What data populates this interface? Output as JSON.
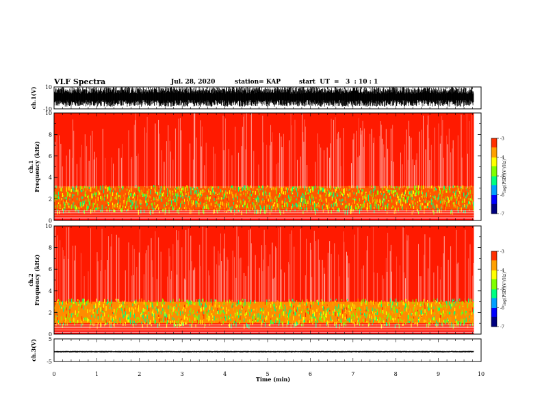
{
  "header": {
    "title": "VLF Spectra",
    "date": "Jul. 28, 2020",
    "station": "station= KAP",
    "start": "start  UT  =   3  : 10 : 1"
  },
  "colors": {
    "spectrogram_background": "#ff0000",
    "waveform": "#000000",
    "colormap": [
      "#00007f",
      "#0000ff",
      "#00a0ff",
      "#00ff80",
      "#80ff00",
      "#ffff00",
      "#ffa000",
      "#ff3000",
      "#ff0000",
      "#ffffff"
    ]
  },
  "chart_data": [
    {
      "type": "line",
      "panel": "ch.1 waveform",
      "ylabel": "ch.1(V)",
      "ylim": [
        -10,
        10
      ],
      "yticks": [
        "10",
        "-10"
      ],
      "xlim": [
        0,
        10
      ],
      "description_values": {
        "typical_min": -8,
        "typical_max": 10
      }
    },
    {
      "type": "heatmap",
      "panel": "ch.1 spectrogram",
      "ylabel": "ch.1\nFrequency  (kHz)",
      "ylim": [
        0,
        10
      ],
      "yticks": [
        "0",
        "2",
        "4",
        "6",
        "8",
        "10"
      ],
      "xlim": [
        0,
        10
      ],
      "colorbar": {
        "label": "log(PSD)(V²/Hz)",
        "range": [
          -7,
          -3
        ],
        "ticks": [
          "-3",
          "-4",
          "-5",
          "-6",
          "-7"
        ]
      },
      "bands": [
        {
          "f_low": 0.3,
          "f_high": 1.0,
          "log_psd": -3.3
        },
        {
          "f_low": 1.0,
          "f_high": 3.2,
          "log_psd": -4.0
        },
        {
          "f_low": 3.2,
          "f_high": 5.0,
          "log_psd": -3.5
        },
        {
          "f_low": 5.0,
          "f_high": 10.0,
          "log_psd": -3.1
        }
      ]
    },
    {
      "type": "heatmap",
      "panel": "ch.2 spectrogram",
      "ylabel": "ch.2\nFrequency  (kHz)",
      "ylim": [
        0,
        10
      ],
      "yticks": [
        "0",
        "2",
        "4",
        "6",
        "8",
        "10"
      ],
      "xlim": [
        0,
        10
      ],
      "colorbar": {
        "label": "log(PSD)(V²/Hz)",
        "range": [
          -7,
          -3
        ],
        "ticks": [
          "-3",
          "-4",
          "-5",
          "-6",
          "-7"
        ]
      },
      "bands": [
        {
          "f_low": 0.3,
          "f_high": 1.0,
          "log_psd": -3.4
        },
        {
          "f_low": 1.0,
          "f_high": 3.0,
          "log_psd": -4.3
        },
        {
          "f_low": 3.0,
          "f_high": 5.0,
          "log_psd": -3.5
        },
        {
          "f_low": 5.0,
          "f_high": 10.0,
          "log_psd": -3.1
        }
      ]
    },
    {
      "type": "line",
      "panel": "ch.3 waveform",
      "ylabel": "ch.3(V)",
      "ylim": [
        -5,
        5
      ],
      "yticks": [
        "5",
        "-5"
      ],
      "xlim": [
        0,
        10
      ],
      "description_values": {
        "typical_min": -1,
        "typical_max": -0.3
      }
    }
  ],
  "x_axis": {
    "label": "Time  (min)",
    "ticks": [
      "0",
      "1",
      "2",
      "3",
      "4",
      "5",
      "6",
      "7",
      "8",
      "9",
      "10"
    ],
    "data_end": 9.83
  }
}
